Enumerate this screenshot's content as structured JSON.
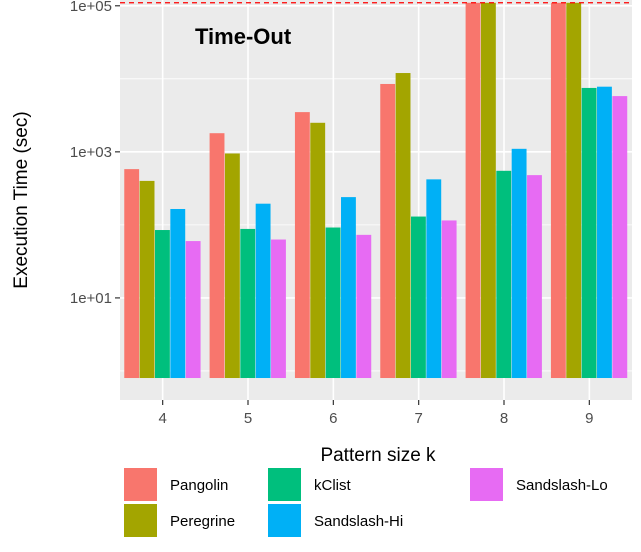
{
  "chart_data": {
    "type": "bar",
    "xlabel": "Pattern size k",
    "ylabel": "Execution Time (sec)",
    "y_scale": "log10",
    "ylim": [
      0.4,
      120000
    ],
    "y_ticks": [
      {
        "value": 10,
        "label": "1e+01"
      },
      {
        "value": 1000,
        "label": "1e+03"
      },
      {
        "value": 100000,
        "label": "1e+05"
      }
    ],
    "categories": [
      "4",
      "5",
      "6",
      "7",
      "8",
      "9"
    ],
    "series": [
      {
        "name": "Pangolin",
        "color": "#F8766D",
        "values": [
          580,
          1800,
          3500,
          8500,
          110000,
          110000
        ]
      },
      {
        "name": "Peregrine",
        "color": "#A3A500",
        "values": [
          400,
          950,
          2500,
          12000,
          110000,
          110000
        ]
      },
      {
        "name": "kClist",
        "color": "#00BF7D",
        "values": [
          85,
          88,
          92,
          130,
          550,
          7500
        ]
      },
      {
        "name": "Sandslash-Hi",
        "color": "#00B0F6",
        "values": [
          165,
          195,
          240,
          420,
          1100,
          7800
        ]
      },
      {
        "name": "Sandslash-Lo",
        "color": "#E76BF3",
        "values": [
          60,
          63,
          73,
          115,
          480,
          5800
        ]
      }
    ],
    "bar_floor": 0.8,
    "reference_line": {
      "value": 110000,
      "color": "#FF0000",
      "style": "dashed"
    },
    "annotation": "Time-Out",
    "grid": true,
    "legend_position": "bottom"
  }
}
